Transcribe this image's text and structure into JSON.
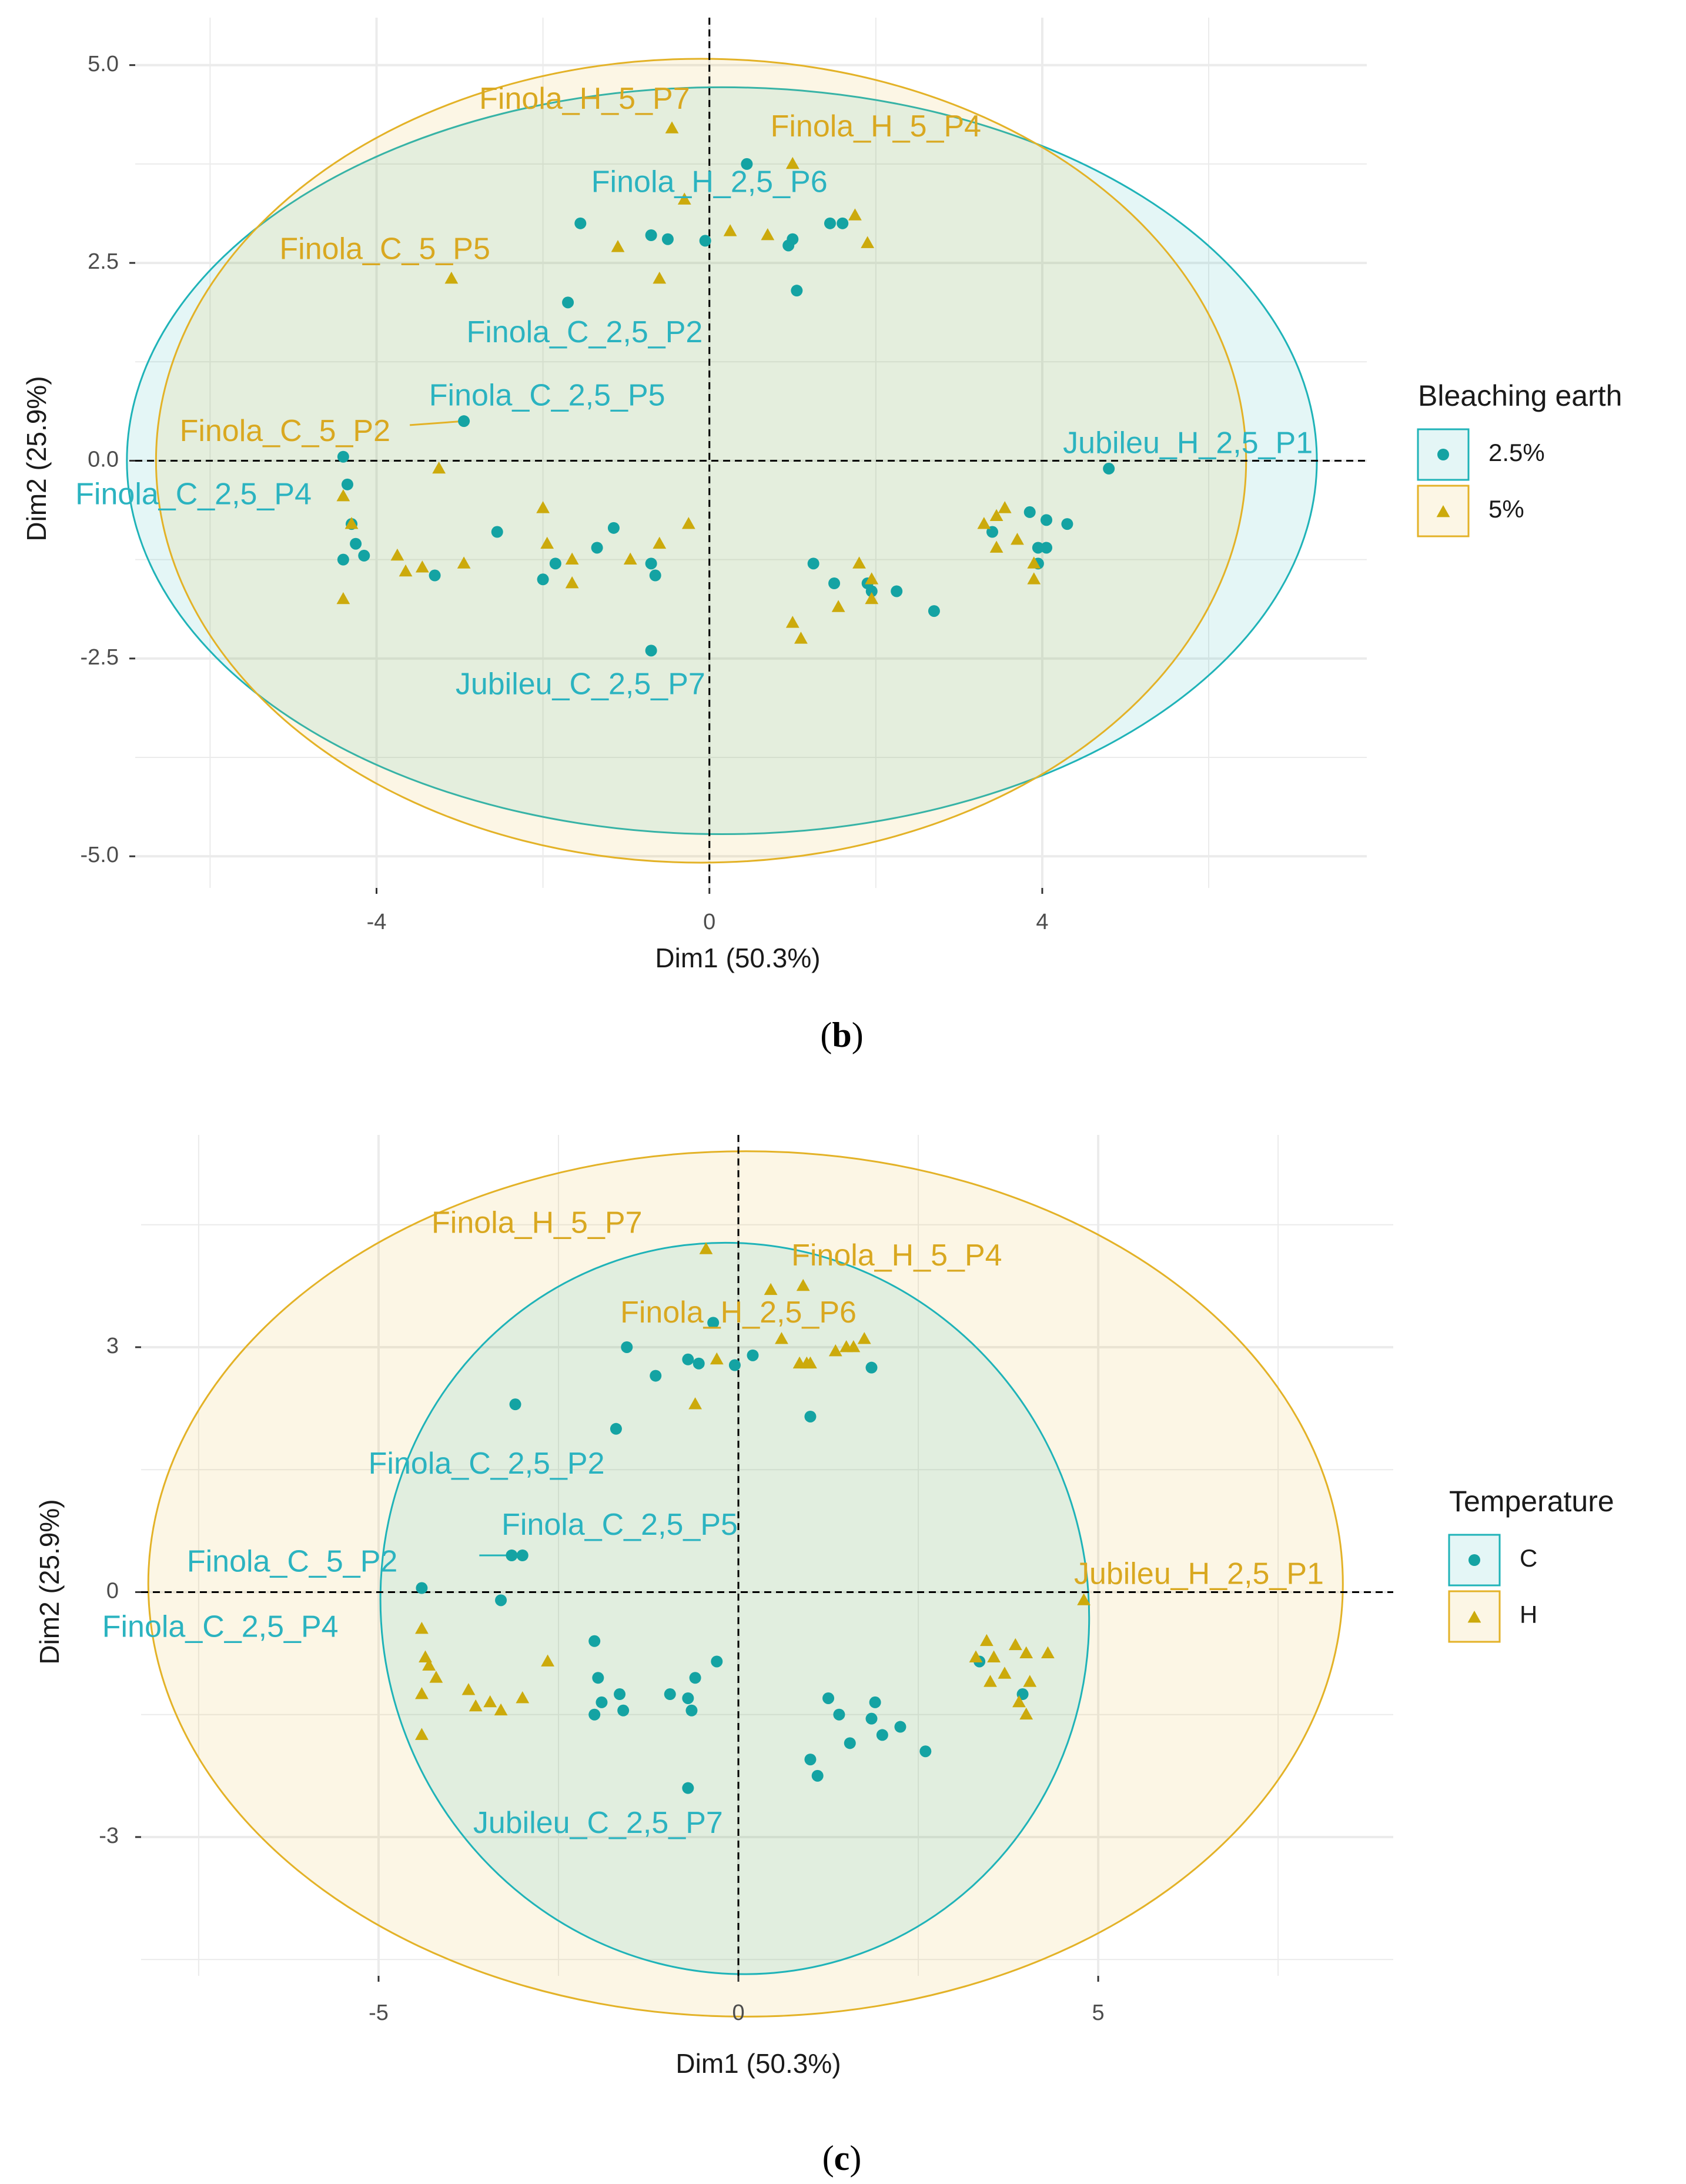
{
  "colors": {
    "teal": "#1fb3b8",
    "gold": "#e3b227",
    "tealPt": "#14a3a3",
    "goldPt": "#ccaa0c",
    "grid": "#ebebeb"
  },
  "chart_data": [
    {
      "type": "scatter",
      "panel": "b",
      "caption_letter": "b",
      "xlabel": "Dim1 (50.3%)",
      "ylabel": "Dim2 (25.9%)",
      "xlim": [
        -6.9,
        7.9
      ],
      "ylim": [
        -5.4,
        5.6
      ],
      "xticks": [
        -4,
        0,
        4
      ],
      "yticks": [
        -5.0,
        -2.5,
        0.0,
        2.5,
        5.0
      ],
      "ytick_labels": [
        "-5.0",
        "-2.5",
        "0.0",
        "2.5",
        "5.0"
      ],
      "legend": {
        "title": "Bleaching earth",
        "position": "right",
        "entries": [
          {
            "label": "2.5%",
            "color": "teal",
            "shape": "circle"
          },
          {
            "label": "5%",
            "color": "gold",
            "shape": "triangle"
          }
        ]
      },
      "ellipses": [
        {
          "group": "2.5%",
          "color": "teal",
          "cx": 0.15,
          "cy": 0.0,
          "rx": 7.15,
          "ry": 4.72,
          "angle": 0
        },
        {
          "group": "5%",
          "color": "gold",
          "cx": -0.1,
          "cy": 0.0,
          "rx": 6.55,
          "ry": 5.08,
          "angle": 0
        }
      ],
      "series": [
        {
          "name": "2.5%",
          "color": "teal",
          "shape": "circle",
          "points": [
            [
              0.45,
              3.75
            ],
            [
              -1.55,
              3.0
            ],
            [
              -0.7,
              2.85
            ],
            [
              -0.5,
              2.8
            ],
            [
              -0.05,
              2.78
            ],
            [
              0.95,
              2.72
            ],
            [
              1.0,
              2.8
            ],
            [
              1.45,
              3.0
            ],
            [
              1.6,
              3.0
            ],
            [
              1.05,
              2.15
            ],
            [
              -1.7,
              2.0
            ],
            [
              -2.95,
              0.5
            ],
            [
              -4.4,
              0.05
            ],
            [
              -4.35,
              -0.3
            ],
            [
              -4.3,
              -0.8
            ],
            [
              -4.25,
              -1.05
            ],
            [
              -4.15,
              -1.2
            ],
            [
              -4.4,
              -1.25
            ],
            [
              -3.3,
              -1.45
            ],
            [
              -2.55,
              -0.9
            ],
            [
              -2.0,
              -1.5
            ],
            [
              -1.85,
              -1.3
            ],
            [
              -1.35,
              -1.1
            ],
            [
              -1.15,
              -0.85
            ],
            [
              -0.7,
              -1.3
            ],
            [
              -0.65,
              -1.45
            ],
            [
              -0.7,
              -2.4
            ],
            [
              1.25,
              -1.3
            ],
            [
              1.5,
              -1.55
            ],
            [
              1.9,
              -1.55
            ],
            [
              1.95,
              -1.65
            ],
            [
              2.25,
              -1.65
            ],
            [
              2.7,
              -1.9
            ],
            [
              3.4,
              -0.9
            ],
            [
              3.85,
              -0.65
            ],
            [
              3.95,
              -1.1
            ],
            [
              4.05,
              -0.75
            ],
            [
              4.05,
              -1.1
            ],
            [
              4.3,
              -0.8
            ],
            [
              3.95,
              -1.3
            ],
            [
              4.8,
              -0.1
            ]
          ]
        },
        {
          "name": "5%",
          "color": "gold",
          "shape": "triangle",
          "points": [
            [
              -0.45,
              4.2
            ],
            [
              1.0,
              3.75
            ],
            [
              -0.3,
              3.3
            ],
            [
              0.25,
              2.9
            ],
            [
              0.7,
              2.85
            ],
            [
              1.75,
              3.1
            ],
            [
              1.9,
              2.75
            ],
            [
              -1.1,
              2.7
            ],
            [
              -0.6,
              2.3
            ],
            [
              -3.1,
              2.3
            ],
            [
              -4.4,
              -0.45
            ],
            [
              -4.3,
              -0.8
            ],
            [
              -4.4,
              -1.75
            ],
            [
              -3.75,
              -1.2
            ],
            [
              -3.65,
              -1.4
            ],
            [
              -3.45,
              -1.35
            ],
            [
              -2.95,
              -1.3
            ],
            [
              -2.0,
              -0.6
            ],
            [
              -1.95,
              -1.05
            ],
            [
              -1.65,
              -1.25
            ],
            [
              -1.65,
              -1.55
            ],
            [
              -0.95,
              -1.25
            ],
            [
              -0.6,
              -1.05
            ],
            [
              -0.25,
              -0.8
            ],
            [
              -3.25,
              -0.1
            ],
            [
              1.0,
              -2.05
            ],
            [
              1.1,
              -2.25
            ],
            [
              1.8,
              -1.3
            ],
            [
              1.95,
              -1.5
            ],
            [
              1.95,
              -1.75
            ],
            [
              1.55,
              -1.85
            ],
            [
              3.3,
              -0.8
            ],
            [
              3.45,
              -0.7
            ],
            [
              3.45,
              -1.1
            ],
            [
              3.55,
              -0.6
            ],
            [
              3.7,
              -1.0
            ],
            [
              3.9,
              -1.3
            ],
            [
              3.9,
              -1.5
            ]
          ]
        }
      ],
      "labels": [
        {
          "text": "Finola_H_5_P7",
          "color": "gold",
          "x": -1.5,
          "y": 4.55
        },
        {
          "text": "Finola_H_5_P4",
          "color": "gold",
          "x": 2.0,
          "y": 4.2
        },
        {
          "text": "Finola_H_2,5_P6",
          "color": "teal",
          "x": 0.0,
          "y": 3.5
        },
        {
          "text": "Finola_C_5_P5",
          "color": "gold",
          "x": -3.9,
          "y": 2.65
        },
        {
          "text": "Finola_C_2,5_P2",
          "color": "teal",
          "x": -1.5,
          "y": 1.6
        },
        {
          "text": "Finola_C_2,5_P5",
          "color": "teal",
          "x": -1.95,
          "y": 0.8
        },
        {
          "text": "Finola_C_5_P2",
          "color": "gold",
          "x": -5.1,
          "y": 0.35
        },
        {
          "text": "Jubileu_H_2,5_P1",
          "color": "teal",
          "x": 5.75,
          "y": 0.2
        },
        {
          "text": "Finola_C_2,5_P4",
          "color": "teal",
          "x": -6.2,
          "y": -0.45
        },
        {
          "text": "Jubileu_C_2,5_P7",
          "color": "teal",
          "x": -1.55,
          "y": -2.85
        }
      ],
      "connectors": [
        {
          "x1": -3.6,
          "y1": 0.45,
          "x2": -2.95,
          "y2": 0.5,
          "color": "gold"
        }
      ]
    },
    {
      "type": "scatter",
      "panel": "c",
      "caption_letter": "c",
      "xlabel": "Dim1 (50.3%)",
      "ylabel": "Dim2 (25.9%)",
      "xlim": [
        -8.3,
        9.1
      ],
      "ylim": [
        -4.7,
        5.6
      ],
      "xticks": [
        -5,
        0,
        5
      ],
      "yticks": [
        -3,
        0,
        3
      ],
      "ytick_labels": [
        "-3",
        "0",
        "3"
      ],
      "legend": {
        "title": "Temperature",
        "position": "right",
        "entries": [
          {
            "label": "C",
            "color": "teal",
            "shape": "circle"
          },
          {
            "label": "H",
            "color": "gold",
            "shape": "triangle"
          }
        ]
      },
      "ellipses": [
        {
          "group": "H",
          "color": "gold",
          "cx": 0.1,
          "cy": 0.1,
          "rx": 8.3,
          "ry": 5.3,
          "angle": 0
        },
        {
          "group": "C",
          "color": "teal",
          "cx": -0.05,
          "cy": -0.2,
          "rx": 4.9,
          "ry": 4.5,
          "angle": -20
        }
      ],
      "series": [
        {
          "name": "C",
          "color": "teal",
          "shape": "circle",
          "points": [
            [
              -0.35,
              3.3
            ],
            [
              -1.55,
              3.0
            ],
            [
              -0.7,
              2.85
            ],
            [
              -0.55,
              2.8
            ],
            [
              -1.15,
              2.65
            ],
            [
              0.2,
              2.9
            ],
            [
              -0.05,
              2.78
            ],
            [
              1.85,
              2.75
            ],
            [
              1.0,
              2.15
            ],
            [
              -1.7,
              2.0
            ],
            [
              -3.1,
              2.3
            ],
            [
              -3.0,
              0.45
            ],
            [
              -3.15,
              0.45
            ],
            [
              -4.4,
              0.05
            ],
            [
              -3.3,
              -0.1
            ],
            [
              -2.0,
              -0.6
            ],
            [
              -1.95,
              -1.05
            ],
            [
              -1.65,
              -1.25
            ],
            [
              -0.95,
              -1.25
            ],
            [
              -0.6,
              -1.05
            ],
            [
              -0.3,
              -0.85
            ],
            [
              -1.9,
              -1.35
            ],
            [
              -2.0,
              -1.5
            ],
            [
              -1.6,
              -1.45
            ],
            [
              -0.7,
              -1.3
            ],
            [
              -0.65,
              -1.45
            ],
            [
              -0.7,
              -2.4
            ],
            [
              1.25,
              -1.3
            ],
            [
              1.4,
              -1.5
            ],
            [
              1.85,
              -1.55
            ],
            [
              1.9,
              -1.35
            ],
            [
              2.0,
              -1.75
            ],
            [
              2.25,
              -1.65
            ],
            [
              2.6,
              -1.95
            ],
            [
              1.0,
              -2.05
            ],
            [
              1.1,
              -2.25
            ],
            [
              1.55,
              -1.85
            ],
            [
              3.35,
              -0.85
            ],
            [
              3.95,
              -1.25
            ]
          ]
        },
        {
          "name": "H",
          "color": "gold",
          "shape": "triangle",
          "points": [
            [
              -0.45,
              4.2
            ],
            [
              0.9,
              3.75
            ],
            [
              0.45,
              3.7
            ],
            [
              0.6,
              3.1
            ],
            [
              1.35,
              2.95
            ],
            [
              1.5,
              3.0
            ],
            [
              1.6,
              3.0
            ],
            [
              1.75,
              3.1
            ],
            [
              0.85,
              2.8
            ],
            [
              0.95,
              2.8
            ],
            [
              1.0,
              2.8
            ],
            [
              -0.3,
              2.85
            ],
            [
              -0.6,
              2.3
            ],
            [
              -4.4,
              -0.45
            ],
            [
              -4.35,
              -0.8
            ],
            [
              -4.3,
              -0.9
            ],
            [
              -4.2,
              -1.05
            ],
            [
              -4.4,
              -1.25
            ],
            [
              -3.75,
              -1.2
            ],
            [
              -3.65,
              -1.4
            ],
            [
              -3.45,
              -1.35
            ],
            [
              -3.3,
              -1.45
            ],
            [
              -3.0,
              -1.3
            ],
            [
              -2.65,
              -0.85
            ],
            [
              -4.4,
              -1.75
            ],
            [
              3.3,
              -0.8
            ],
            [
              3.45,
              -0.6
            ],
            [
              3.5,
              -1.1
            ],
            [
              3.55,
              -0.8
            ],
            [
              3.7,
              -1.0
            ],
            [
              3.85,
              -0.65
            ],
            [
              4.0,
              -0.75
            ],
            [
              4.05,
              -1.1
            ],
            [
              4.3,
              -0.75
            ],
            [
              3.9,
              -1.35
            ],
            [
              4.0,
              -1.5
            ],
            [
              4.8,
              -0.1
            ]
          ]
        }
      ],
      "labels": [
        {
          "text": "Finola_H_5_P7",
          "color": "gold",
          "x": -2.8,
          "y": 4.5
        },
        {
          "text": "Finola_H_5_P4",
          "color": "gold",
          "x": 2.2,
          "y": 4.1
        },
        {
          "text": "Finola_H_2,5_P6",
          "color": "gold",
          "x": 0.0,
          "y": 3.4
        },
        {
          "text": "Finola_C_2,5_P2",
          "color": "teal",
          "x": -3.5,
          "y": 1.55
        },
        {
          "text": "Finola_C_2,5_P5",
          "color": "teal",
          "x": -1.65,
          "y": 0.8
        },
        {
          "text": "Finola_C_5_P2",
          "color": "teal",
          "x": -6.2,
          "y": 0.35
        },
        {
          "text": "Jubileu_H_2,5_P1",
          "color": "gold",
          "x": 6.4,
          "y": 0.2
        },
        {
          "text": "Finola_C_2,5_P4",
          "color": "teal",
          "x": -7.2,
          "y": -0.45
        },
        {
          "text": "Jubileu_C_2,5_P7",
          "color": "teal",
          "x": -1.95,
          "y": -2.85
        }
      ],
      "connectors": [
        {
          "x1": -3.6,
          "y1": 0.45,
          "x2": -3.05,
          "y2": 0.45,
          "color": "teal"
        }
      ]
    }
  ]
}
